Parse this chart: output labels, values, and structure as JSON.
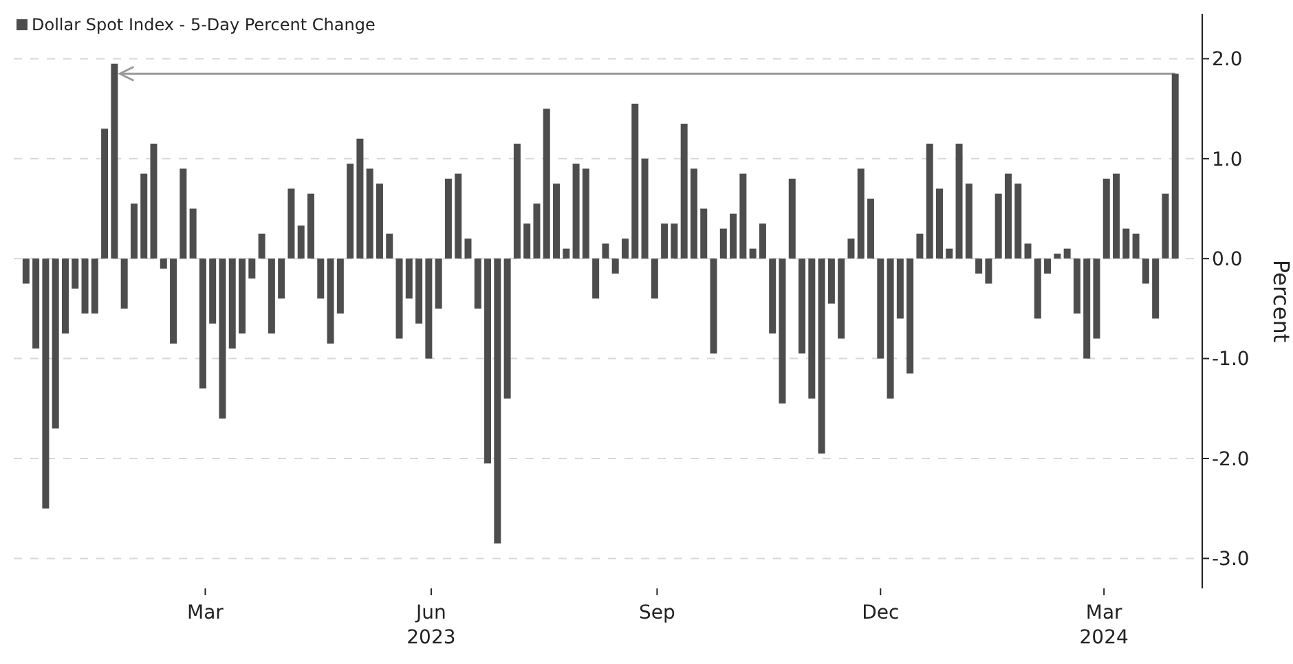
{
  "chart_data": {
    "type": "bar",
    "x": [
      "2023-01-01",
      "2023-01-05",
      "2023-01-09",
      "2023-01-13",
      "2023-01-17",
      "2023-01-21",
      "2023-01-25",
      "2023-01-29",
      "2023-02-02",
      "2023-02-06",
      "2023-02-10",
      "2023-02-14",
      "2023-02-18",
      "2023-02-22",
      "2023-02-26",
      "2023-03-02",
      "2023-03-06",
      "2023-03-10",
      "2023-03-14",
      "2023-03-18",
      "2023-03-22",
      "2023-03-26",
      "2023-03-30",
      "2023-04-03",
      "2023-04-07",
      "2023-04-11",
      "2023-04-15",
      "2023-04-19",
      "2023-04-23",
      "2023-04-27",
      "2023-05-01",
      "2023-05-05",
      "2023-05-09",
      "2023-05-13",
      "2023-05-17",
      "2023-05-21",
      "2023-05-25",
      "2023-05-29",
      "2023-06-02",
      "2023-06-06",
      "2023-06-10",
      "2023-06-14",
      "2023-06-18",
      "2023-06-22",
      "2023-06-26",
      "2023-06-30",
      "2023-07-04",
      "2023-07-08",
      "2023-07-12",
      "2023-07-16",
      "2023-07-20",
      "2023-07-24",
      "2023-07-28",
      "2023-08-01",
      "2023-08-05",
      "2023-08-09",
      "2023-08-13",
      "2023-08-17",
      "2023-08-21",
      "2023-08-25",
      "2023-08-29",
      "2023-09-02",
      "2023-09-06",
      "2023-09-10",
      "2023-09-14",
      "2023-09-18",
      "2023-09-22",
      "2023-09-26",
      "2023-09-30",
      "2023-10-04",
      "2023-10-08",
      "2023-10-12",
      "2023-10-16",
      "2023-10-20",
      "2023-10-24",
      "2023-10-28",
      "2023-11-01",
      "2023-11-05",
      "2023-11-09",
      "2023-11-13",
      "2023-11-17",
      "2023-11-21",
      "2023-11-25",
      "2023-11-29",
      "2023-12-03",
      "2023-12-07",
      "2023-12-11",
      "2023-12-15",
      "2023-12-19",
      "2023-12-23",
      "2023-12-27",
      "2023-12-31",
      "2024-01-04",
      "2024-01-08",
      "2024-01-12",
      "2024-01-16",
      "2024-01-20",
      "2024-01-24",
      "2024-01-28",
      "2024-02-01",
      "2024-02-05",
      "2024-02-09",
      "2024-02-13",
      "2024-02-17",
      "2024-02-21",
      "2024-02-25",
      "2024-02-29",
      "2024-03-04",
      "2024-03-08",
      "2024-03-12",
      "2024-03-16",
      "2024-03-20",
      "2024-03-24",
      "2024-03-28",
      "2024-04-01",
      "2024-04-05",
      "2024-04-09",
      "2024-04-13"
    ],
    "series": [
      {
        "name": "Dollar Spot Index - 5-Day Percent Change",
        "color": "#4d4d4d",
        "values": [
          -0.25,
          -0.9,
          -2.5,
          -1.7,
          -0.75,
          -0.3,
          -0.55,
          -0.55,
          1.3,
          1.95,
          -0.5,
          0.55,
          0.85,
          1.15,
          -0.1,
          -0.85,
          0.9,
          0.5,
          -1.3,
          -0.65,
          -1.6,
          -0.9,
          -0.75,
          -0.2,
          0.25,
          -0.75,
          -0.4,
          0.7,
          0.33,
          0.65,
          -0.4,
          -0.85,
          -0.55,
          0.95,
          1.2,
          0.9,
          0.75,
          0.25,
          -0.8,
          -0.4,
          -0.65,
          -1.0,
          -0.5,
          0.8,
          0.85,
          0.2,
          -0.5,
          -2.05,
          -2.85,
          -1.4,
          1.15,
          0.35,
          0.55,
          1.5,
          0.75,
          0.1,
          0.95,
          0.9,
          -0.4,
          0.15,
          -0.15,
          0.2,
          1.55,
          1.0,
          -0.4,
          0.35,
          0.35,
          1.35,
          0.9,
          0.5,
          -0.95,
          0.3,
          0.45,
          0.85,
          0.1,
          0.35,
          -0.75,
          -1.45,
          0.8,
          -0.95,
          -1.4,
          -1.95,
          -0.45,
          -0.8,
          0.2,
          0.9,
          0.6,
          -1.0,
          -1.4,
          -0.6,
          -1.15,
          0.25,
          1.15,
          0.7,
          0.1,
          1.15,
          0.75,
          -0.15,
          -0.25,
          0.65,
          0.85,
          0.75,
          0.15,
          -0.6,
          -0.15,
          0.05,
          0.1,
          -0.55,
          -1.0,
          -0.8,
          0.8,
          0.85,
          0.3,
          0.25,
          -0.25,
          -0.6,
          0.65,
          1.85
        ]
      }
    ],
    "xlim": [
      "2022-12-27",
      "2024-04-24"
    ],
    "xticks": [
      {
        "value": "2023-03-15",
        "label": "Mar"
      },
      {
        "value": "2023-06-15",
        "label": "Jun\n2023"
      },
      {
        "value": "2023-09-15",
        "label": "Sep"
      },
      {
        "value": "2023-12-15",
        "label": "Dec"
      },
      {
        "value": "2024-03-15",
        "label": "Mar\n2024"
      }
    ],
    "ylim": [
      -3.3,
      2.45
    ],
    "yticks": [
      {
        "value": -3,
        "label": "-3.0"
      },
      {
        "value": -2,
        "label": "-2.0"
      },
      {
        "value": -1,
        "label": "-1.0"
      },
      {
        "value": 0,
        "label": "0.0"
      },
      {
        "value": 1,
        "label": "1.0"
      },
      {
        "value": 2,
        "label": "2.0"
      }
    ],
    "ylabel": "Percent",
    "ref_lines": [
      {
        "axis": "y",
        "value": 1.85,
        "color": "#9a9a9a"
      }
    ],
    "grid": "y",
    "legend": "top left"
  }
}
